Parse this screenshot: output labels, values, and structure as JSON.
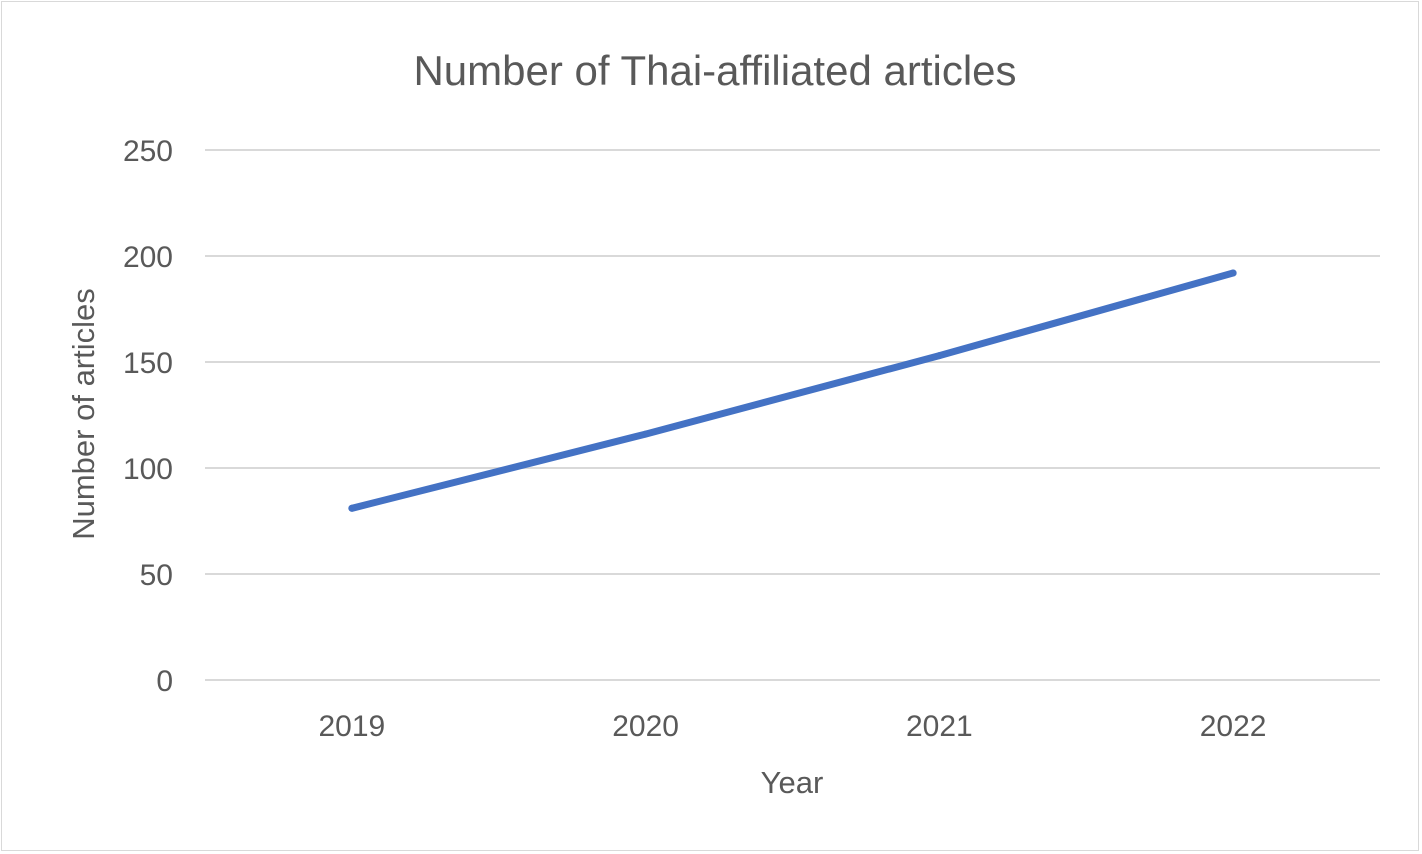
{
  "chart_data": {
    "type": "line",
    "title": "Number of Thai-affiliated articles",
    "xlabel": "Year",
    "ylabel": "Number of articles",
    "categories": [
      "2019",
      "2020",
      "2021",
      "2022"
    ],
    "series": [
      {
        "values": [
          81,
          116,
          153,
          192
        ],
        "color": "#4472c4"
      }
    ],
    "ylim": [
      0,
      250
    ],
    "yticks": [
      "0",
      "50",
      "100",
      "150",
      "200",
      "250"
    ],
    "grid": true,
    "gridline_color": "#d9d9d9",
    "legend": "none"
  }
}
